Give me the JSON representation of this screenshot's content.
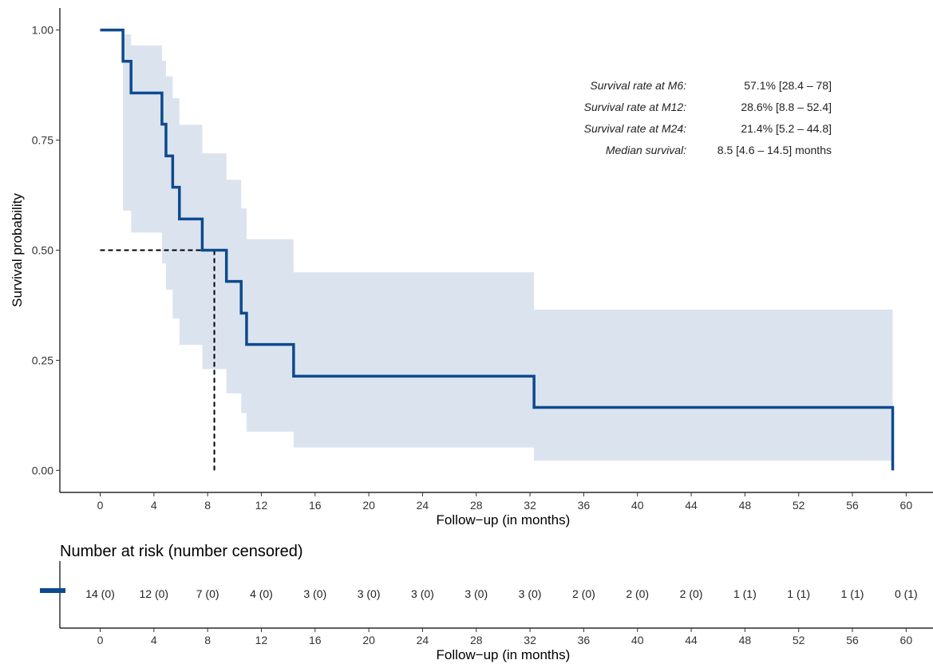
{
  "chart_data": {
    "type": "line",
    "subtype": "kaplan-meier",
    "title": "",
    "xlabel": "Follow−up (in months)",
    "ylabel": "Survival probability",
    "xlim": [
      -3,
      62
    ],
    "ylim": [
      -0.05,
      1.05
    ],
    "x_ticks": [
      "0",
      "4",
      "8",
      "12",
      "16",
      "20",
      "24",
      "28",
      "32",
      "36",
      "40",
      "44",
      "48",
      "52",
      "56",
      "60"
    ],
    "y_ticks": [
      "0.00",
      "0.25",
      "0.50",
      "0.75",
      "1.00"
    ],
    "grid": false,
    "legend": "none",
    "colors": {
      "line": "#0d4a8f",
      "ci": "#dbe4ee",
      "median": "#000000"
    },
    "series": [
      {
        "x": [
          0,
          1.7,
          2.3,
          4.6,
          4.9,
          5.4,
          5.9,
          7.6,
          9.4,
          10.5,
          10.9,
          14.4,
          32.3,
          59
        ],
        "y": [
          1.0,
          0.929,
          0.857,
          0.786,
          0.714,
          0.643,
          0.571,
          0.5,
          0.429,
          0.357,
          0.286,
          0.214,
          0.143,
          0.143
        ],
        "ci_lower": [
          1.0,
          0.59,
          0.54,
          0.47,
          0.41,
          0.345,
          0.285,
          0.23,
          0.175,
          0.13,
          0.088,
          0.052,
          0.022,
          0.022
        ],
        "ci_upper": [
          1.0,
          0.99,
          0.965,
          0.93,
          0.895,
          0.845,
          0.785,
          0.72,
          0.66,
          0.595,
          0.525,
          0.45,
          0.365,
          0.365
        ],
        "end_drop_to": 0
      }
    ],
    "median_survival_x": 8.5,
    "median_survival_y": 0.5,
    "annotations": [
      {
        "label": "Survival rate at M6:",
        "value": "57.1% [28.4 – 78]"
      },
      {
        "label": "Survival rate at M12:",
        "value": "28.6% [8.8 – 52.4]"
      },
      {
        "label": "Survival rate at M24:",
        "value": "21.4% [5.2 – 44.8]"
      },
      {
        "label": "Median survival:",
        "value": "8.5 [4.6 – 14.5] months"
      }
    ],
    "risk_table": {
      "title": "Number at risk (number censored)",
      "xlabel": "Follow−up (in months)",
      "times": [
        0,
        4,
        8,
        12,
        16,
        20,
        24,
        28,
        32,
        36,
        40,
        44,
        48,
        52,
        56,
        60
      ],
      "cells": [
        "14 (0)",
        "12 (0)",
        "7 (0)",
        "4 (0)",
        "3 (0)",
        "3 (0)",
        "3 (0)",
        "3 (0)",
        "3 (0)",
        "2 (0)",
        "2 (0)",
        "2 (0)",
        "1 (1)",
        "1 (1)",
        "1 (1)",
        "0 (1)"
      ]
    }
  }
}
